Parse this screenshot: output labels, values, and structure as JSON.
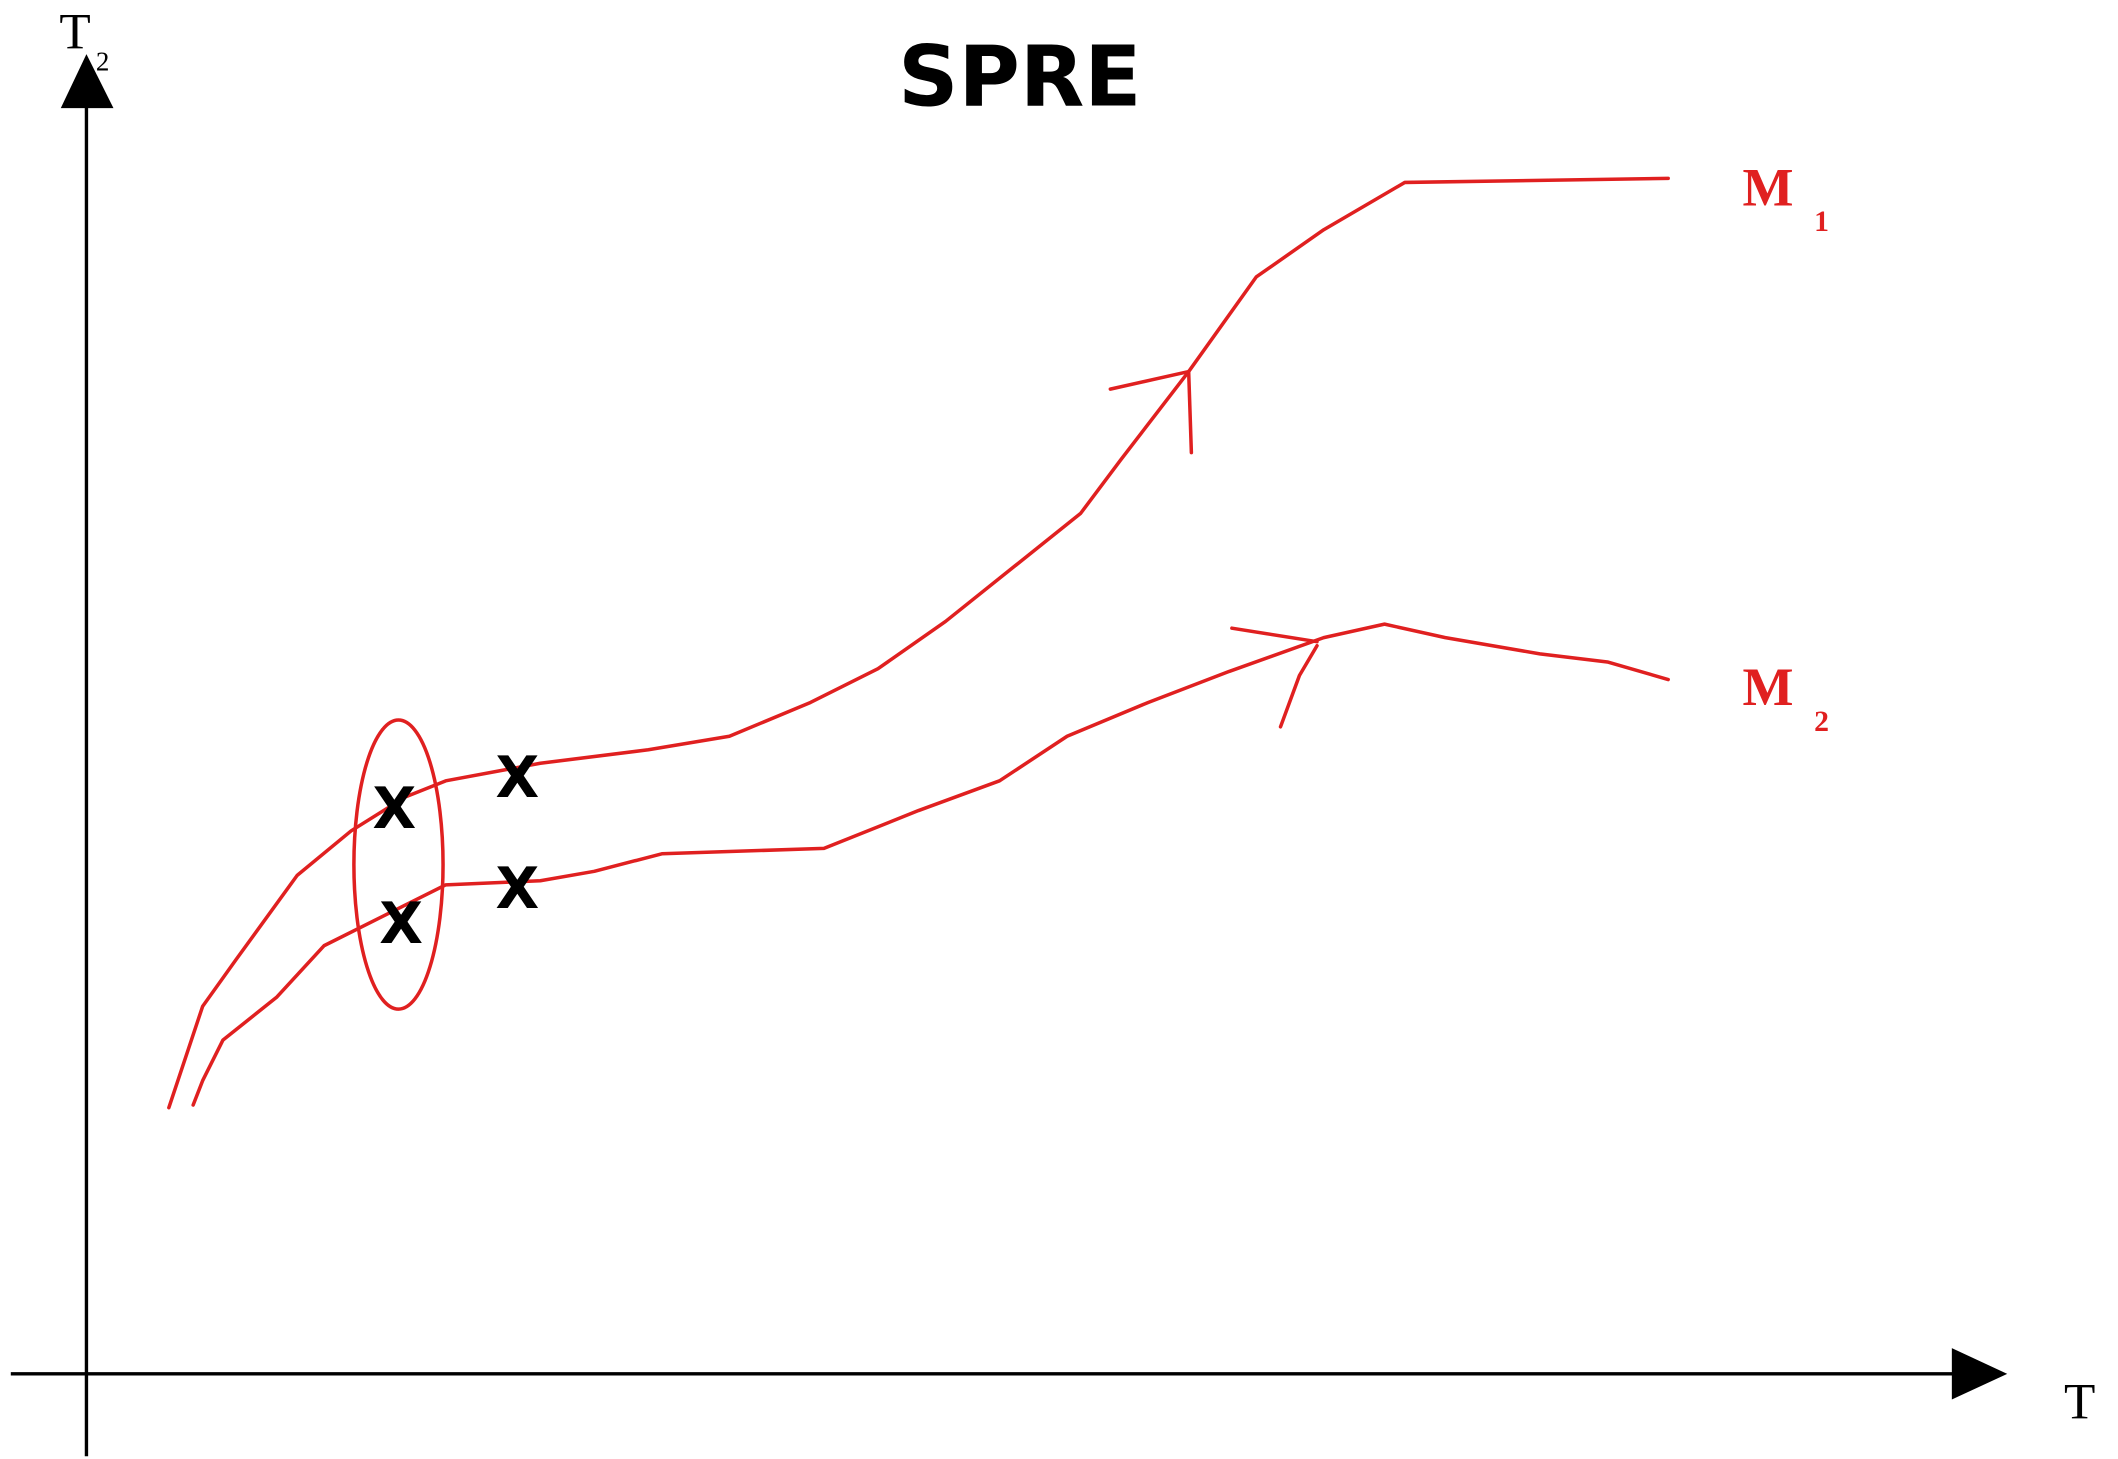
{
  "title": "SPRE",
  "axes": {
    "y": {
      "label": "T",
      "subscript": "2"
    },
    "x": {
      "label": "T"
    }
  },
  "curves": [
    {
      "label": "M",
      "subscript": "1"
    },
    {
      "label": "M",
      "subscript": "2"
    }
  ],
  "markers": [
    "X",
    "X",
    "X",
    "X"
  ]
}
